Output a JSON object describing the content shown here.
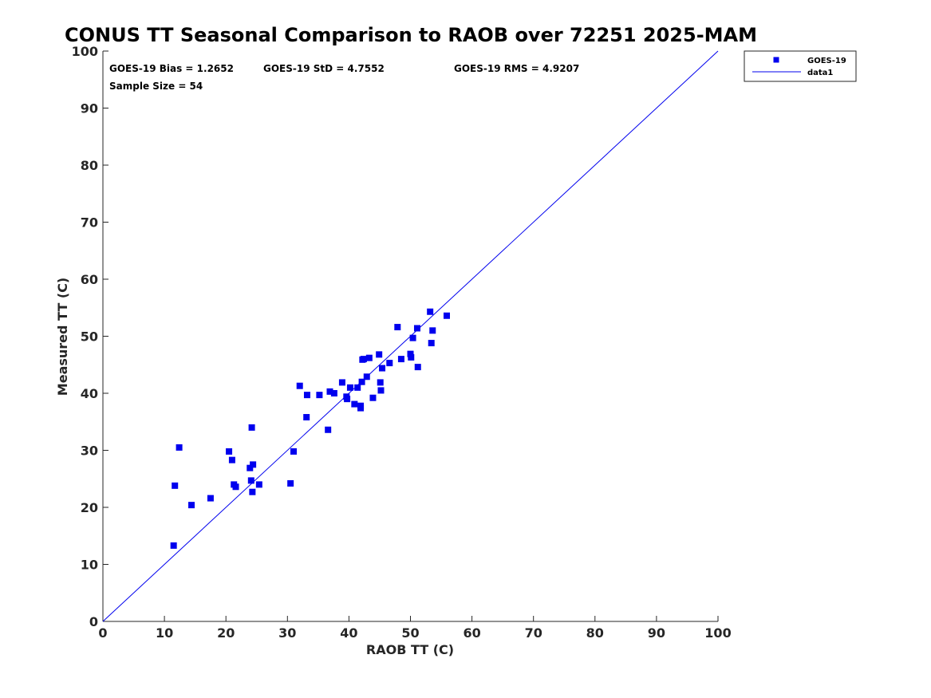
{
  "chart_data": {
    "type": "scatter",
    "title": "CONUS TT Seasonal Comparison to RAOB over 72251 2025-MAM",
    "xlabel": "RAOB TT (C)",
    "ylabel": "Measured TT (C)",
    "xlim": [
      0,
      100
    ],
    "ylim": [
      0,
      100
    ],
    "xticks": [
      "0",
      "10",
      "20",
      "30",
      "40",
      "50",
      "60",
      "70",
      "80",
      "90",
      "100"
    ],
    "yticks": [
      "0",
      "10",
      "20",
      "30",
      "40",
      "50",
      "60",
      "70",
      "80",
      "90",
      "100"
    ],
    "grid": false,
    "legend_position": "top-right",
    "stats": {
      "bias": "GOES-19 Bias = 1.2652",
      "std": "GOES-19 StD = 4.7552",
      "rms": "GOES-19 RMS = 4.9207",
      "sample": "Sample Size = 54"
    },
    "series": [
      {
        "name": "GOES-19",
        "kind": "scatter",
        "color": "#0000ee",
        "marker": "square",
        "points": [
          [
            11.5,
            13.3
          ],
          [
            11.7,
            23.8
          ],
          [
            12.4,
            30.5
          ],
          [
            14.4,
            20.4
          ],
          [
            17.5,
            21.6
          ],
          [
            20.5,
            29.8
          ],
          [
            21.0,
            28.3
          ],
          [
            21.3,
            24.0
          ],
          [
            21.6,
            23.6
          ],
          [
            23.9,
            26.9
          ],
          [
            24.1,
            24.7
          ],
          [
            24.2,
            34.0
          ],
          [
            24.3,
            22.7
          ],
          [
            24.4,
            27.5
          ],
          [
            25.4,
            24.0
          ],
          [
            30.5,
            24.2
          ],
          [
            31.0,
            29.8
          ],
          [
            32.0,
            41.3
          ],
          [
            33.1,
            35.8
          ],
          [
            33.2,
            39.7
          ],
          [
            35.2,
            39.7
          ],
          [
            36.6,
            33.6
          ],
          [
            36.9,
            40.3
          ],
          [
            37.6,
            40.0
          ],
          [
            38.9,
            41.9
          ],
          [
            39.6,
            39.4
          ],
          [
            39.7,
            39.0
          ],
          [
            40.2,
            41.0
          ],
          [
            40.9,
            38.1
          ],
          [
            41.4,
            41.0
          ],
          [
            41.9,
            37.8
          ],
          [
            41.9,
            37.4
          ],
          [
            42.1,
            42.0
          ],
          [
            42.2,
            45.9
          ],
          [
            42.4,
            46.0
          ],
          [
            42.9,
            42.9
          ],
          [
            43.3,
            46.2
          ],
          [
            43.9,
            39.2
          ],
          [
            44.9,
            46.8
          ],
          [
            45.1,
            41.9
          ],
          [
            45.2,
            40.5
          ],
          [
            45.4,
            44.4
          ],
          [
            46.6,
            45.3
          ],
          [
            47.9,
            51.6
          ],
          [
            48.5,
            46.0
          ],
          [
            50.0,
            46.9
          ],
          [
            50.1,
            46.3
          ],
          [
            50.4,
            49.7
          ],
          [
            51.1,
            51.4
          ],
          [
            51.2,
            44.6
          ],
          [
            53.2,
            54.3
          ],
          [
            53.4,
            48.8
          ],
          [
            53.6,
            51.0
          ],
          [
            55.9,
            53.6
          ]
        ]
      },
      {
        "name": "data1",
        "kind": "line",
        "color": "#0000ee",
        "x": [
          0,
          100
        ],
        "y": [
          0,
          100
        ]
      }
    ]
  }
}
